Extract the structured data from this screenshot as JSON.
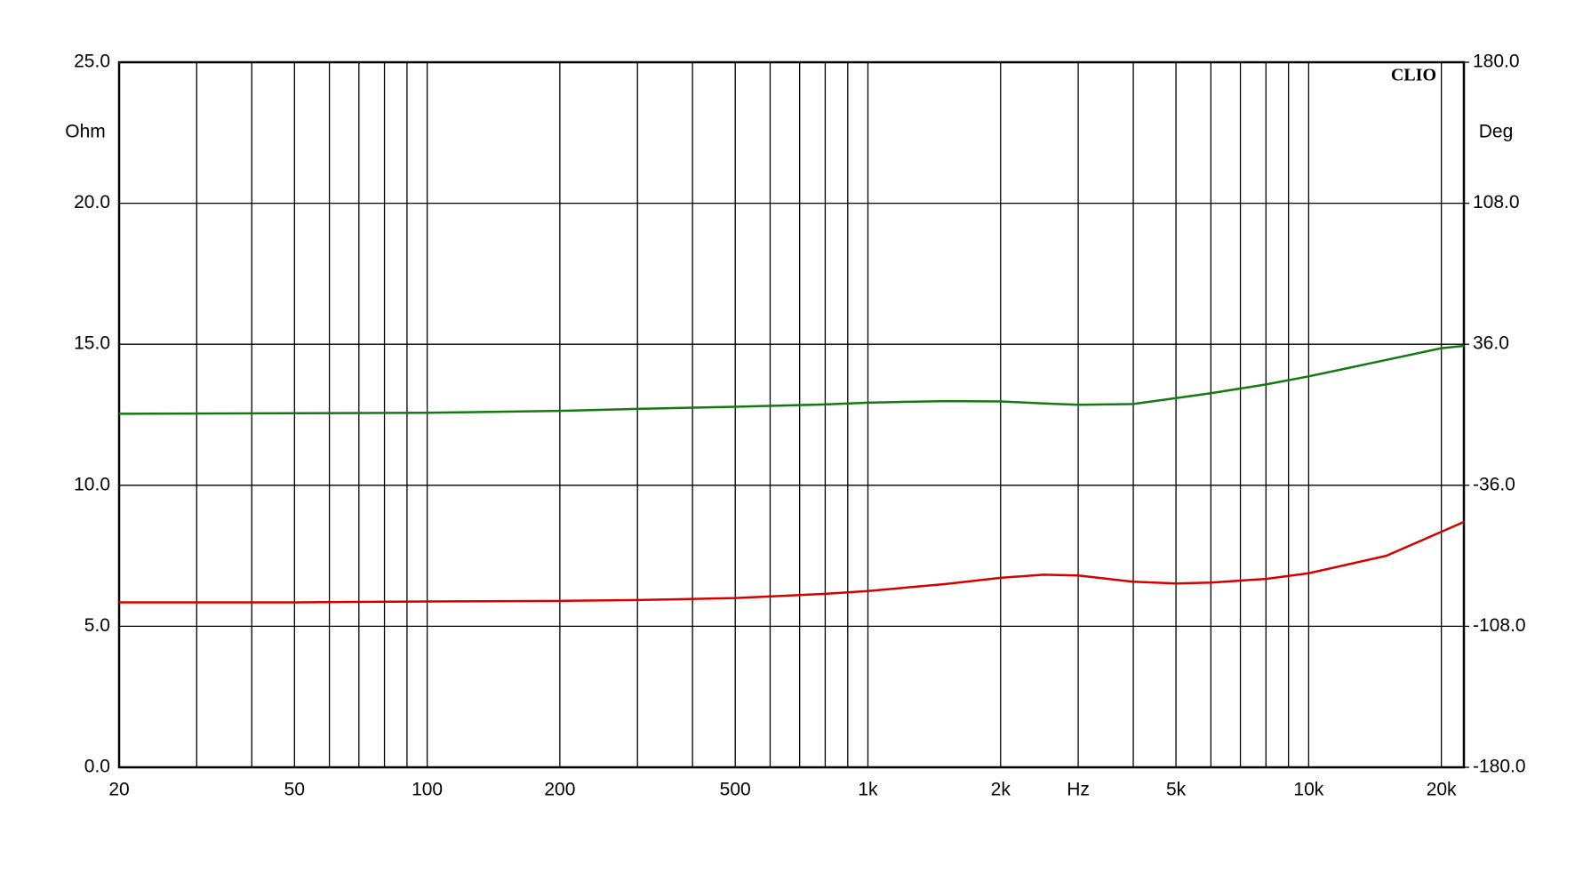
{
  "chart_data": {
    "type": "line",
    "annotation": "CLIO",
    "y_label": "Ohm",
    "y2_label": "Deg",
    "xscale": "log",
    "xlim": [
      20,
      22500
    ],
    "xticks": [
      20,
      50,
      100,
      200,
      500,
      {
        "value": 1000,
        "label": "1k"
      },
      {
        "value": 2000,
        "label": "2k"
      },
      {
        "value": 3000,
        "label": "Hz"
      },
      {
        "value": 5000,
        "label": "5k"
      },
      {
        "value": 10000,
        "label": "10k"
      },
      {
        "value": 20000,
        "label": "20k"
      }
    ],
    "x_gridlines": [
      20,
      30,
      40,
      50,
      60,
      70,
      80,
      90,
      100,
      200,
      300,
      400,
      500,
      600,
      700,
      800,
      900,
      1000,
      2000,
      3000,
      4000,
      5000,
      6000,
      7000,
      8000,
      9000,
      10000,
      20000
    ],
    "ylim": [
      0,
      25
    ],
    "yticks": [
      {
        "value": 0,
        "label": "0.0"
      },
      {
        "value": 5,
        "label": "5.0"
      },
      {
        "value": 10,
        "label": "10.0"
      },
      {
        "value": 15,
        "label": "15.0"
      },
      {
        "value": 20,
        "label": "20.0"
      },
      {
        "value": 25,
        "label": "25.0"
      }
    ],
    "y2lim": [
      -180,
      180
    ],
    "y2ticks": [
      {
        "value": -180,
        "label": "-180.0"
      },
      {
        "value": -108,
        "label": "-108.0"
      },
      {
        "value": -36,
        "label": "-36.0"
      },
      {
        "value": 36,
        "label": "36.0"
      },
      {
        "value": 108,
        "label": "108.0"
      },
      {
        "value": 180,
        "label": "180.0"
      }
    ],
    "grid": true,
    "x": [
      20,
      50,
      100,
      200,
      300,
      500,
      800,
      1000,
      1500,
      2000,
      2500,
      3000,
      4000,
      5000,
      6000,
      8000,
      10000,
      15000,
      20000,
      22500
    ],
    "series": [
      {
        "color": "#d40000",
        "values": [
          5.85,
          5.85,
          5.88,
          5.9,
          5.93,
          6.0,
          6.15,
          6.25,
          6.5,
          6.72,
          6.83,
          6.8,
          6.58,
          6.52,
          6.55,
          6.68,
          6.88,
          7.5,
          8.35,
          8.7
        ]
      },
      {
        "color": "#137a13",
        "axis": "y2",
        "values": [
          0.5,
          0.8,
          1.0,
          2.0,
          3.0,
          4.1,
          5.3,
          6.2,
          7.0,
          6.8,
          5.8,
          5.1,
          5.5,
          8.5,
          11,
          15.5,
          19.6,
          28,
          34,
          35.2
        ]
      }
    ]
  }
}
